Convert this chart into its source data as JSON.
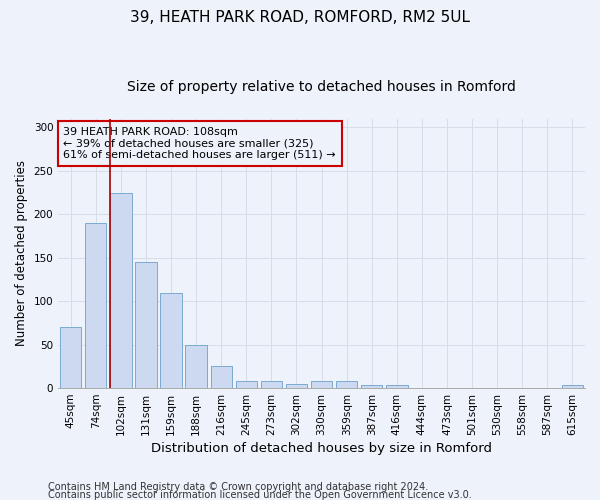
{
  "title1": "39, HEATH PARK ROAD, ROMFORD, RM2 5UL",
  "title2": "Size of property relative to detached houses in Romford",
  "xlabel": "Distribution of detached houses by size in Romford",
  "ylabel": "Number of detached properties",
  "categories": [
    "45sqm",
    "74sqm",
    "102sqm",
    "131sqm",
    "159sqm",
    "188sqm",
    "216sqm",
    "245sqm",
    "273sqm",
    "302sqm",
    "330sqm",
    "359sqm",
    "387sqm",
    "416sqm",
    "444sqm",
    "473sqm",
    "501sqm",
    "530sqm",
    "558sqm",
    "587sqm",
    "615sqm"
  ],
  "values": [
    70,
    190,
    225,
    145,
    110,
    50,
    25,
    8,
    8,
    5,
    8,
    8,
    3,
    4,
    0,
    0,
    0,
    0,
    0,
    0,
    3
  ],
  "bar_color": "#ccd9f0",
  "bar_edge_color": "#7aaad0",
  "vline_x": 1.55,
  "vline_color": "#aa0000",
  "annotation_box_text": "39 HEATH PARK ROAD: 108sqm\n← 39% of detached houses are smaller (325)\n61% of semi-detached houses are larger (511) →",
  "annotation_box_color": "#cc0000",
  "ylim": [
    0,
    310
  ],
  "yticks": [
    0,
    50,
    100,
    150,
    200,
    250,
    300
  ],
  "footer_line1": "Contains HM Land Registry data © Crown copyright and database right 2024.",
  "footer_line2": "Contains public sector information licensed under the Open Government Licence v3.0.",
  "background_color": "#eef2fa",
  "grid_color": "#d8dce8",
  "title1_fontsize": 11,
  "title2_fontsize": 10,
  "xlabel_fontsize": 9.5,
  "ylabel_fontsize": 8.5,
  "tick_fontsize": 7.5,
  "footer_fontsize": 7,
  "ann_fontsize": 8
}
